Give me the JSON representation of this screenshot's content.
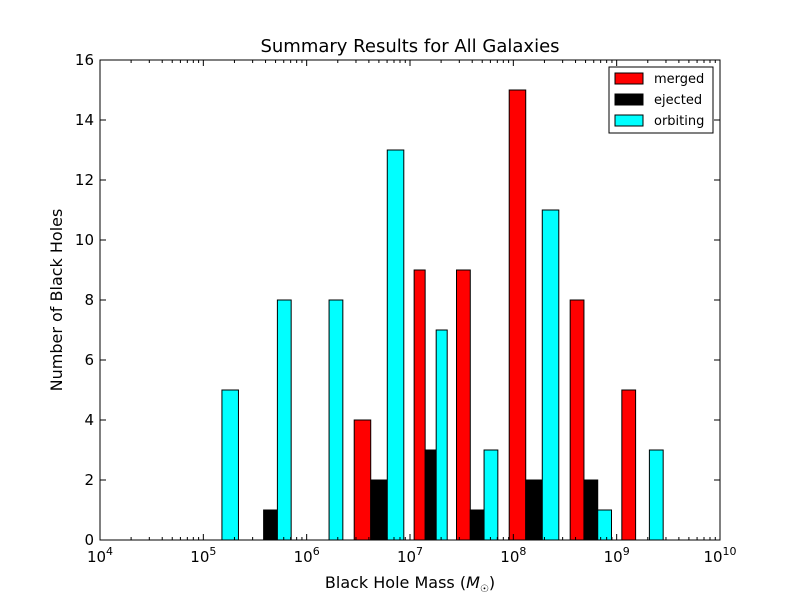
{
  "chart_data": {
    "type": "bar",
    "title": "Summary Results for All Galaxies",
    "xlabel": "Black Hole Mass",
    "xlabel_unit": "M",
    "xlabel_unit_sub": "☉",
    "ylabel": "Number of Black Holes",
    "x_scale": "log",
    "xlim": [
      10000,
      10000000000
    ],
    "ylim": [
      0,
      16
    ],
    "x_ticks": [
      {
        "value": 10000,
        "mantissa": "10",
        "exp": "4"
      },
      {
        "value": 100000,
        "mantissa": "10",
        "exp": "5"
      },
      {
        "value": 1000000,
        "mantissa": "10",
        "exp": "6"
      },
      {
        "value": 10000000,
        "mantissa": "10",
        "exp": "7"
      },
      {
        "value": 100000000,
        "mantissa": "10",
        "exp": "8"
      },
      {
        "value": 1000000000,
        "mantissa": "10",
        "exp": "9"
      },
      {
        "value": 10000000000,
        "mantissa": "10",
        "exp": "10"
      }
    ],
    "y_ticks": [
      0,
      2,
      4,
      6,
      8,
      10,
      12,
      14,
      16
    ],
    "bin_edges_log10": [
      4.4,
      4.8,
      5.4,
      5.9,
      6.4,
      7.0,
      7.4,
      7.9,
      8.5,
      9.0,
      9.5
    ],
    "grid": false,
    "legend_position": "top-right",
    "series": [
      {
        "name": "merged",
        "color": "#ff0000",
        "values": [
          0,
          0,
          0,
          0,
          4,
          9,
          9,
          15,
          8,
          5
        ]
      },
      {
        "name": "ejected",
        "color": "#000000",
        "values": [
          0,
          0,
          1,
          0,
          2,
          3,
          1,
          2,
          2,
          0
        ]
      },
      {
        "name": "orbiting",
        "color": "#00ffff",
        "values": [
          0,
          5,
          8,
          8,
          13,
          7,
          3,
          11,
          1,
          3
        ]
      }
    ]
  }
}
